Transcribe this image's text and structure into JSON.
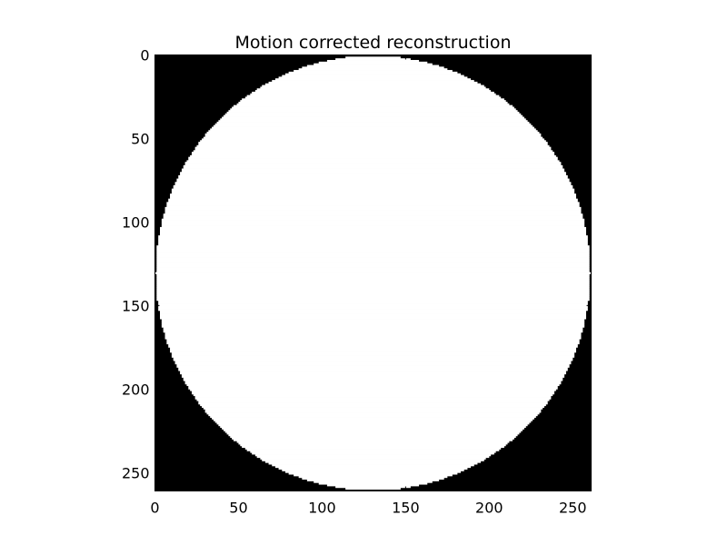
{
  "chart_data": {
    "type": "heatmap",
    "title": "Motion corrected reconstruction",
    "xlabel": "",
    "ylabel": "",
    "image_size": [
      261,
      261
    ],
    "xlim": [
      0,
      261
    ],
    "ylim": [
      261,
      0
    ],
    "x_ticks": [
      0,
      50,
      100,
      150,
      200,
      250
    ],
    "y_ticks": [
      0,
      50,
      100,
      150,
      200,
      250
    ],
    "colormap": "gray",
    "content": {
      "shape": "circle",
      "center": [
        130,
        130
      ],
      "radius": 130,
      "inside_value": 1,
      "outside_value": 0
    },
    "grid": false,
    "colors": {
      "inside": "#ffffff",
      "outside": "#000000"
    }
  }
}
